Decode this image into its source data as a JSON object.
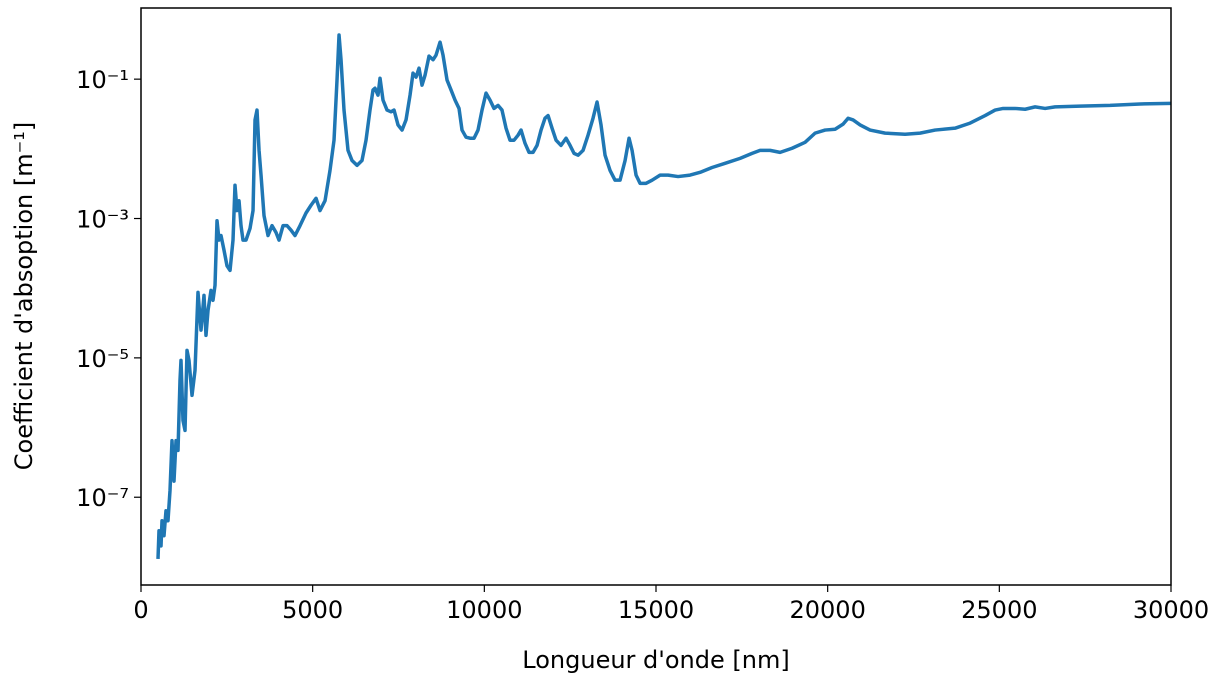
{
  "chart_data": {
    "type": "line",
    "xlabel": "Longueur d'onde [nm]",
    "ylabel": "Coefficient d'absoption [m⁻¹]",
    "color": "#1f77b4",
    "yscale": "log",
    "xlim": [
      0,
      30000
    ],
    "ylim": [
      5.5e-09,
      1.05
    ],
    "xticks": [
      0,
      5000,
      10000,
      15000,
      20000,
      25000,
      30000
    ],
    "yticks": [
      {
        "value": 1e-07,
        "label": "10⁻⁷"
      },
      {
        "value": 1e-05,
        "label": "10⁻⁵"
      },
      {
        "value": 0.001,
        "label": "10⁻³"
      },
      {
        "value": 0.1,
        "label": "10⁻¹"
      }
    ],
    "x": [
      495,
      524,
      583,
      612,
      670,
      728,
      786,
      845,
      903,
      961,
      1020,
      1078,
      1136,
      1165,
      1223,
      1282,
      1340,
      1398,
      1486,
      1573,
      1660,
      1748,
      1835,
      1893,
      1952,
      2039,
      2097,
      2156,
      2214,
      2272,
      2330,
      2418,
      2505,
      2593,
      2680,
      2738,
      2796,
      2855,
      2913,
      2971,
      3059,
      3175,
      3263,
      3321,
      3379,
      3438,
      3496,
      3583,
      3700,
      3816,
      3933,
      4020,
      4137,
      4253,
      4370,
      4486,
      4632,
      4806,
      4952,
      5098,
      5214,
      5360,
      5505,
      5622,
      5709,
      5768,
      5826,
      5913,
      6030,
      6146,
      6292,
      6437,
      6554,
      6670,
      6758,
      6816,
      6903,
      6962,
      7049,
      7166,
      7282,
      7370,
      7486,
      7603,
      7719,
      7836,
      7923,
      8011,
      8098,
      8185,
      8273,
      8389,
      8506,
      8593,
      8710,
      8797,
      8914,
      9030,
      9147,
      9263,
      9350,
      9467,
      9583,
      9700,
      9816,
      9933,
      10049,
      10166,
      10282,
      10399,
      10515,
      10632,
      10748,
      10865,
      10982,
      11069,
      11186,
      11302,
      11419,
      11535,
      11652,
      11768,
      11856,
      11972,
      12089,
      12234,
      12380,
      12497,
      12613,
      12730,
      12875,
      13021,
      13166,
      13283,
      13399,
      13516,
      13662,
      13807,
      13953,
      14099,
      14215,
      14303,
      14419,
      14536,
      14711,
      14886,
      15119,
      15352,
      15643,
      15992,
      16284,
      16633,
      17012,
      17449,
      17798,
      18031,
      18323,
      18614,
      18964,
      19342,
      19634,
      19925,
      20216,
      20449,
      20595,
      20741,
      20945,
      21236,
      21673,
      22255,
      22692,
      23129,
      23712,
      24149,
      24586,
      24877,
      25110,
      25460,
      25751,
      26042,
      26333,
      26624,
      27352,
      28226,
      29100,
      30000
    ],
    "values": [
      1.3e-08,
      3.3e-08,
      2e-08,
      4.6e-08,
      2.8e-08,
      6.4e-08,
      4.6e-08,
      1.25e-07,
      6.5e-07,
      1.7e-07,
      6.5e-07,
      4.7e-07,
      4.8e-06,
      9.2e-06,
      1.26e-06,
      9.1e-07,
      1.28e-05,
      9.2e-06,
      2.9e-06,
      6.6e-06,
      8.7e-05,
      2.5e-05,
      7.9e-05,
      2.1e-05,
      4.8e-05,
      9.3e-05,
      6.7e-05,
      0.00011,
      0.00093,
      0.00049,
      0.00057,
      0.00035,
      0.00021,
      0.00018,
      0.00049,
      0.003,
      0.0013,
      0.0018,
      0.00079,
      0.00049,
      0.00049,
      0.00072,
      0.0013,
      0.026,
      0.036,
      0.0095,
      0.0042,
      0.0011,
      0.00057,
      0.00079,
      0.00063,
      0.00049,
      0.00079,
      0.00079,
      0.00068,
      0.00057,
      0.00079,
      0.0012,
      0.00155,
      0.00195,
      0.0013,
      0.0018,
      0.0049,
      0.0133,
      0.097,
      0.43,
      0.19,
      0.036,
      0.0095,
      0.0068,
      0.0058,
      0.0068,
      0.0133,
      0.036,
      0.07,
      0.074,
      0.059,
      0.103,
      0.05,
      0.036,
      0.034,
      0.036,
      0.022,
      0.0186,
      0.026,
      0.059,
      0.122,
      0.107,
      0.144,
      0.082,
      0.114,
      0.214,
      0.19,
      0.221,
      0.34,
      0.221,
      0.097,
      0.07,
      0.05,
      0.038,
      0.0186,
      0.0147,
      0.0142,
      0.0142,
      0.0186,
      0.036,
      0.063,
      0.05,
      0.038,
      0.042,
      0.036,
      0.0198,
      0.0133,
      0.0133,
      0.0157,
      0.0186,
      0.012,
      0.0089,
      0.0089,
      0.0112,
      0.0186,
      0.0275,
      0.03,
      0.0198,
      0.0133,
      0.0112,
      0.0142,
      0.0112,
      0.0086,
      0.0081,
      0.0095,
      0.0157,
      0.0275,
      0.047,
      0.022,
      0.0081,
      0.0049,
      0.00355,
      0.00355,
      0.0068,
      0.0142,
      0.0095,
      0.0042,
      0.0032,
      0.0032,
      0.00355,
      0.0042,
      0.0042,
      0.004,
      0.0042,
      0.0046,
      0.0054,
      0.0062,
      0.0073,
      0.0086,
      0.0095,
      0.0095,
      0.0089,
      0.0102,
      0.0124,
      0.0168,
      0.0186,
      0.0191,
      0.0226,
      0.0275,
      0.026,
      0.022,
      0.0186,
      0.0168,
      0.0162,
      0.0168,
      0.0186,
      0.0198,
      0.0234,
      0.03,
      0.036,
      0.038,
      0.038,
      0.037,
      0.04,
      0.038,
      0.04,
      0.041,
      0.042,
      0.044,
      0.045
    ]
  }
}
